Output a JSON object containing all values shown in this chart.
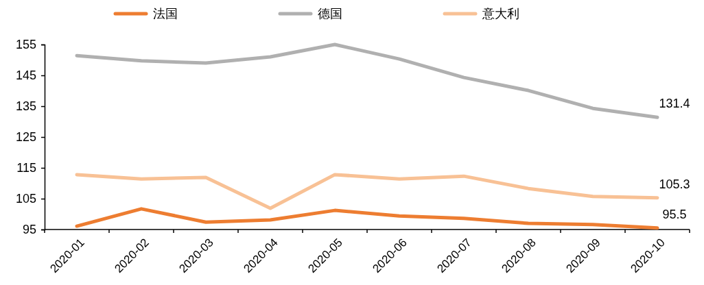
{
  "chart_data": {
    "type": "line",
    "categories": [
      "2020-01",
      "2020-02",
      "2020-03",
      "2020-04",
      "2020-05",
      "2020-06",
      "2020-07",
      "2020-08",
      "2020-09",
      "2020-10"
    ],
    "series": [
      {
        "name": "法国",
        "color": "#ed7d31",
        "values": [
          96.1,
          101.7,
          97.4,
          98.1,
          101.2,
          99.4,
          98.6,
          97.0,
          96.6,
          95.5
        ],
        "value_labels": [
          null,
          null,
          null,
          null,
          null,
          null,
          null,
          null,
          null,
          "95.5"
        ]
      },
      {
        "name": "德国",
        "color": "#b0b0b0",
        "values": [
          151.4,
          149.7,
          149.0,
          151.0,
          155.0,
          150.3,
          144.3,
          140.1,
          134.3,
          131.4
        ],
        "value_labels": [
          null,
          null,
          null,
          null,
          null,
          null,
          null,
          null,
          null,
          "131.4"
        ]
      },
      {
        "name": "意大利",
        "color": "#f8c195",
        "values": [
          112.8,
          111.4,
          111.9,
          101.9,
          112.8,
          111.4,
          112.3,
          108.3,
          105.7,
          105.3
        ],
        "value_labels": [
          null,
          null,
          null,
          null,
          null,
          null,
          null,
          null,
          null,
          "105.3"
        ]
      }
    ],
    "ylim": [
      95,
      155
    ],
    "yticks": [
      95,
      105,
      115,
      125,
      135,
      145,
      155
    ],
    "grid": false,
    "legend": "top",
    "marker": "none",
    "line_style": "solid"
  }
}
